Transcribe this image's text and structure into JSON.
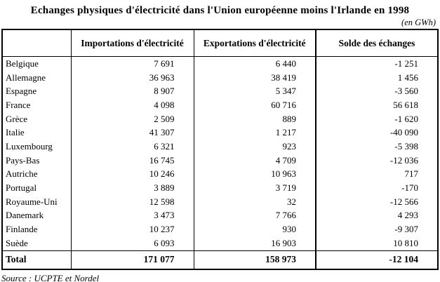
{
  "title": "Echanges physiques d'électricité dans l'Union européenne moins l'Irlande en 1998",
  "unit_note": "(en GWh)",
  "table": {
    "headers": [
      "",
      "Importations d'électricité",
      "Exportations d'électricité",
      "Solde des échanges"
    ],
    "rows": [
      {
        "country": "Belgique",
        "imports": "7 691",
        "exports": "6 440",
        "balance": "-1 251"
      },
      {
        "country": "Allemagne",
        "imports": "36 963",
        "exports": "38 419",
        "balance": "1 456"
      },
      {
        "country": "Espagne",
        "imports": "8 907",
        "exports": "5 347",
        "balance": "-3 560"
      },
      {
        "country": "France",
        "imports": "4 098",
        "exports": "60 716",
        "balance": "56 618"
      },
      {
        "country": "Grèce",
        "imports": "2 509",
        "exports": "889",
        "balance": "-1 620"
      },
      {
        "country": "Italie",
        "imports": "41 307",
        "exports": "1 217",
        "balance": "-40 090"
      },
      {
        "country": "Luxembourg",
        "imports": "6 321",
        "exports": "923",
        "balance": "-5 398"
      },
      {
        "country": "Pays-Bas",
        "imports": "16 745",
        "exports": "4 709",
        "balance": "-12 036"
      },
      {
        "country": "Autriche",
        "imports": "10 246",
        "exports": "10 963",
        "balance": "717"
      },
      {
        "country": "Portugal",
        "imports": "3 889",
        "exports": "3 719",
        "balance": "-170"
      },
      {
        "country": "Royaume-Uni",
        "imports": "12 598",
        "exports": "32",
        "balance": "-12 566"
      },
      {
        "country": "Danemark",
        "imports": "3 473",
        "exports": "7 766",
        "balance": "4 293"
      },
      {
        "country": "Finlande",
        "imports": "10 237",
        "exports": "930",
        "balance": "-9 307"
      },
      {
        "country": "Suède",
        "imports": "6 093",
        "exports": "16 903",
        "balance": "10 810"
      }
    ],
    "total": {
      "label": "Total",
      "imports": "171 077",
      "exports": "158 973",
      "balance": "-12 104"
    }
  },
  "source": "Source : UCPTE et Nordel"
}
